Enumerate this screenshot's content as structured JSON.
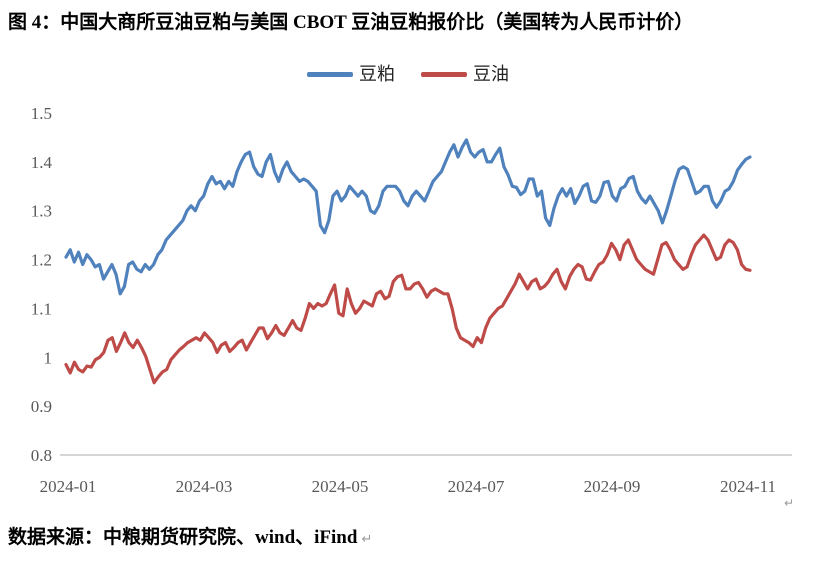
{
  "title": "图 4：中国大商所豆油豆粕与美国 CBOT 豆油豆粕报价比（美国转为人民币计价）",
  "source_note": "数据来源：中粮期货研究院、wind、iFind",
  "paragraph_mark": "↵",
  "colors": {
    "meal_line": "#4F81BD",
    "oil_line": "#BE4B48",
    "axis_text": "#595959",
    "axis_line": "#D6D6D6"
  },
  "chart_data": {
    "type": "line",
    "title": "中国大商所豆油豆粕与美国 CBOT 豆油豆粕报价比（美国转为人民币计价）",
    "grid": false,
    "legend_position": "top",
    "x_axis": {
      "unit": "date (daily, 2024-01 to 2024-11)",
      "tick_labels": [
        "2024-01",
        "2024-03",
        "2024-05",
        "2024-07",
        "2024-09",
        "2024-11"
      ],
      "tick_months": [
        0,
        2,
        4,
        6,
        8,
        10
      ],
      "data_month_span": [
        0,
        10.05
      ]
    },
    "y_axis": {
      "min": 0.8,
      "max": 1.5,
      "tick_values": [
        0.8,
        0.9,
        1.0,
        1.1,
        1.2,
        1.3,
        1.4,
        1.5
      ],
      "tick_labels": [
        "0.8",
        "0.9",
        "1",
        "1.1",
        "1.2",
        "1.3",
        "1.4",
        "1.5"
      ]
    },
    "series": [
      {
        "key": "soybean-meal",
        "name": "豆粕",
        "color": "#4F81BD",
        "values": [
          1.205,
          1.22,
          1.195,
          1.215,
          1.19,
          1.21,
          1.2,
          1.185,
          1.19,
          1.16,
          1.175,
          1.19,
          1.17,
          1.13,
          1.145,
          1.19,
          1.195,
          1.18,
          1.175,
          1.19,
          1.18,
          1.19,
          1.21,
          1.22,
          1.24,
          1.25,
          1.26,
          1.27,
          1.28,
          1.3,
          1.31,
          1.3,
          1.32,
          1.33,
          1.355,
          1.37,
          1.355,
          1.36,
          1.345,
          1.36,
          1.35,
          1.38,
          1.4,
          1.415,
          1.42,
          1.39,
          1.375,
          1.37,
          1.4,
          1.415,
          1.38,
          1.36,
          1.385,
          1.4,
          1.38,
          1.37,
          1.36,
          1.365,
          1.36,
          1.35,
          1.34,
          1.27,
          1.255,
          1.28,
          1.33,
          1.34,
          1.32,
          1.33,
          1.35,
          1.34,
          1.33,
          1.34,
          1.33,
          1.3,
          1.295,
          1.31,
          1.34,
          1.35,
          1.35,
          1.35,
          1.34,
          1.32,
          1.31,
          1.33,
          1.34,
          1.33,
          1.32,
          1.34,
          1.36,
          1.37,
          1.38,
          1.4,
          1.42,
          1.435,
          1.41,
          1.43,
          1.445,
          1.42,
          1.41,
          1.42,
          1.425,
          1.4,
          1.4,
          1.415,
          1.428,
          1.39,
          1.373,
          1.35,
          1.348,
          1.333,
          1.34,
          1.365,
          1.365,
          1.33,
          1.34,
          1.285,
          1.27,
          1.305,
          1.33,
          1.345,
          1.33,
          1.345,
          1.315,
          1.33,
          1.35,
          1.355,
          1.32,
          1.317,
          1.33,
          1.358,
          1.36,
          1.33,
          1.32,
          1.345,
          1.35,
          1.366,
          1.37,
          1.34,
          1.325,
          1.316,
          1.33,
          1.315,
          1.3,
          1.275,
          1.3,
          1.33,
          1.36,
          1.385,
          1.39,
          1.385,
          1.36,
          1.335,
          1.34,
          1.35,
          1.35,
          1.32,
          1.307,
          1.32,
          1.34,
          1.345,
          1.36,
          1.383,
          1.395,
          1.405,
          1.41
        ]
      },
      {
        "key": "soybean-oil",
        "name": "豆油",
        "color": "#BE4B48",
        "values": [
          0.985,
          0.968,
          0.99,
          0.975,
          0.97,
          0.982,
          0.98,
          0.995,
          1.0,
          1.01,
          1.035,
          1.04,
          1.012,
          1.03,
          1.05,
          1.03,
          1.02,
          1.035,
          1.02,
          1.002,
          0.975,
          0.948,
          0.96,
          0.97,
          0.975,
          0.995,
          1.005,
          1.015,
          1.022,
          1.03,
          1.035,
          1.04,
          1.035,
          1.05,
          1.04,
          1.03,
          1.01,
          1.025,
          1.03,
          1.012,
          1.02,
          1.03,
          1.035,
          1.015,
          1.03,
          1.045,
          1.06,
          1.06,
          1.038,
          1.05,
          1.065,
          1.05,
          1.045,
          1.06,
          1.075,
          1.06,
          1.055,
          1.08,
          1.11,
          1.1,
          1.11,
          1.105,
          1.11,
          1.13,
          1.148,
          1.09,
          1.085,
          1.14,
          1.11,
          1.09,
          1.1,
          1.115,
          1.11,
          1.105,
          1.13,
          1.135,
          1.12,
          1.125,
          1.155,
          1.165,
          1.168,
          1.14,
          1.14,
          1.15,
          1.153,
          1.14,
          1.123,
          1.135,
          1.14,
          1.135,
          1.13,
          1.13,
          1.1,
          1.06,
          1.04,
          1.035,
          1.03,
          1.022,
          1.04,
          1.03,
          1.06,
          1.08,
          1.09,
          1.1,
          1.105,
          1.12,
          1.135,
          1.15,
          1.17,
          1.155,
          1.14,
          1.155,
          1.16,
          1.14,
          1.145,
          1.155,
          1.17,
          1.18,
          1.155,
          1.14,
          1.165,
          1.18,
          1.19,
          1.185,
          1.16,
          1.158,
          1.175,
          1.19,
          1.195,
          1.21,
          1.233,
          1.22,
          1.2,
          1.23,
          1.24,
          1.22,
          1.2,
          1.19,
          1.18,
          1.175,
          1.17,
          1.2,
          1.23,
          1.235,
          1.22,
          1.2,
          1.19,
          1.18,
          1.185,
          1.21,
          1.23,
          1.24,
          1.25,
          1.24,
          1.22,
          1.2,
          1.205,
          1.23,
          1.24,
          1.235,
          1.22,
          1.19,
          1.18,
          1.178
        ]
      }
    ]
  }
}
